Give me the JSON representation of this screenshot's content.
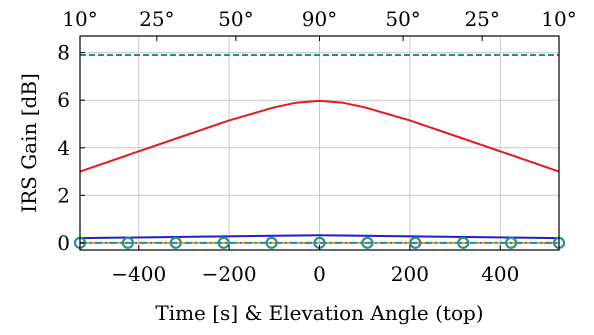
{
  "chart_data": {
    "type": "line",
    "title": "",
    "xlabel": "Time [s] & Elevation Angle (top)",
    "ylabel": "IRS Gain [dB]",
    "xlim": [
      -530,
      530
    ],
    "ylim": [
      -0.3,
      8.7
    ],
    "grid": true,
    "x_ticks": [
      -400,
      -200,
      0,
      200,
      400
    ],
    "x_tick_labels": [
      "−400",
      "−200",
      "0",
      "200",
      "400"
    ],
    "y_ticks": [
      0,
      2,
      4,
      6,
      8
    ],
    "y_tick_labels": [
      "0",
      "2",
      "4",
      "6",
      "8"
    ],
    "top_ticks": [
      {
        "x": -530,
        "label": "10°"
      },
      {
        "x": -360,
        "label": "25°"
      },
      {
        "x": -185,
        "label": "50°"
      },
      {
        "x": 0,
        "label": "90°"
      },
      {
        "x": 185,
        "label": "50°"
      },
      {
        "x": 360,
        "label": "25°"
      },
      {
        "x": 530,
        "label": "10°"
      }
    ],
    "series": [
      {
        "color": "#1a9090",
        "style": "dashed",
        "x": [
          -530,
          530
        ],
        "y": [
          7.9,
          7.9
        ]
      },
      {
        "color": "#e41a1c",
        "style": "solid",
        "x": [
          -530,
          -400,
          -300,
          -200,
          -100,
          -50,
          0,
          50,
          100,
          200,
          300,
          400,
          530
        ],
        "y": [
          3.0,
          3.85,
          4.5,
          5.15,
          5.7,
          5.9,
          5.97,
          5.9,
          5.7,
          5.15,
          4.5,
          3.85,
          3.0
        ]
      },
      {
        "color": "#1f1fd0",
        "style": "solid",
        "x": [
          -530,
          -300,
          -100,
          0,
          100,
          300,
          530
        ],
        "y": [
          0.2,
          0.25,
          0.3,
          0.32,
          0.3,
          0.25,
          0.2
        ]
      },
      {
        "color": "#e8a020",
        "style": "solid",
        "x": [
          -530,
          530
        ],
        "y": [
          0.0,
          0.0
        ]
      },
      {
        "color": "#2a8f8f",
        "style": "dash-dot",
        "markers": "circle",
        "x": [
          -530,
          -424,
          -318,
          -212,
          -106,
          0,
          106,
          212,
          318,
          424,
          530
        ],
        "y": [
          0,
          0,
          0,
          0,
          0,
          0,
          0,
          0,
          0,
          0,
          0
        ]
      }
    ]
  }
}
